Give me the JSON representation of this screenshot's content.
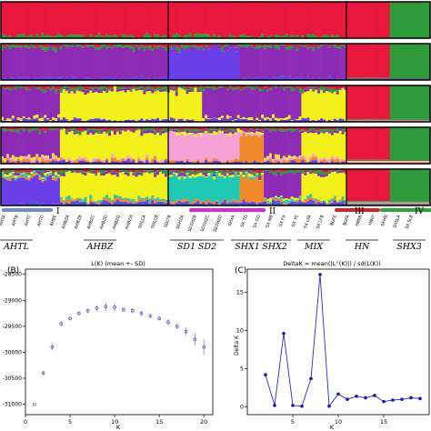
{
  "chart_data": [
    {
      "type": "structure_barplot",
      "rows": [
        {
          "k": 2,
          "colors": [
            "#e8173c",
            "#2e9b3a"
          ]
        },
        {
          "k": 3,
          "colors": [
            "#e8173c",
            "#2e9b3a",
            "#8e2bb5",
            "#6a3fe8"
          ]
        },
        {
          "k": 4,
          "colors": [
            "#e8173c",
            "#2e9b3a",
            "#8e2bb5",
            "#f2f21a",
            "#6a3fe8"
          ]
        },
        {
          "k": 5,
          "colors": [
            "#e8173c",
            "#2e9b3a",
            "#8e2bb5",
            "#f2f21a",
            "#f5a2d6",
            "#f08a2a",
            "#6a3fe8"
          ]
        },
        {
          "k": 6,
          "colors": [
            "#e8173c",
            "#2e9b3a",
            "#8e2bb5",
            "#f2f21a",
            "#1fc9b5",
            "#f08a2a",
            "#6a3fe8",
            "#3b5bd6"
          ]
        }
      ],
      "group_bars": [
        {
          "label": "I",
          "color": "#6e8fc6"
        },
        {
          "label": "II",
          "color": "#d829d8"
        },
        {
          "label": "III",
          "color": "#d8232a"
        },
        {
          "label": "IV",
          "color": "#2ea43a"
        }
      ],
      "sample_labels": [
        "AHTA",
        "AHTB",
        "AHTC",
        "AHTD",
        "AHBE",
        "AHBZA",
        "AHBZB",
        "AHBZC",
        "AHBZD",
        "AHBZG",
        "AHBZH",
        "SDLCA",
        "SDLCB",
        "SDLTB",
        "SDHZA",
        "SD2HZB",
        "SD2HZC",
        "SD2HZD",
        "SHXA",
        "SX TG",
        "SX GQ",
        "SX MB",
        "SX FX",
        "SX YS",
        "SX LFA",
        "SX LFB",
        "BUFE",
        "BUFA",
        "HBRK",
        "HNLY",
        "SXHN",
        "SXSLA",
        "SX SLB"
      ],
      "populations": [
        "AHTL",
        "AHBZ",
        "SD1",
        "SD2",
        "SHX1",
        "SHX2",
        "MIX",
        "HN",
        "SHX3"
      ]
    },
    {
      "type": "line",
      "panel_label": "(B)",
      "title": "L(K) (mean +- SD)",
      "xlabel": "K",
      "ylabel": "",
      "x": [
        1,
        2,
        3,
        4,
        5,
        6,
        7,
        8,
        9,
        10,
        11,
        12,
        13,
        14,
        15,
        16,
        17,
        18,
        19,
        20
      ],
      "y": [
        -31000,
        -30400,
        -29900,
        -29450,
        -29350,
        -29250,
        -29200,
        -29150,
        -29120,
        -29130,
        -29180,
        -29200,
        -29250,
        -29300,
        -29350,
        -29420,
        -29500,
        -29600,
        -29750,
        -29900
      ],
      "yerr": [
        0,
        40,
        60,
        50,
        40,
        40,
        40,
        60,
        80,
        80,
        40,
        50,
        50,
        40,
        40,
        60,
        60,
        80,
        120,
        150
      ],
      "xlim": [
        0,
        21
      ],
      "ylim": [
        -31200,
        -28400
      ],
      "xticks": [
        0,
        5,
        10,
        15,
        20
      ],
      "ytick_labels": [
        "-28500",
        "-29000",
        "-29500",
        "-30000",
        "-30500",
        "-31000"
      ],
      "ytick_values": [
        -28500,
        -29000,
        -29500,
        -30000,
        -30500,
        -31000
      ]
    },
    {
      "type": "line",
      "panel_label": "(C)",
      "title": "DeltaK = mean(|L''(K)|) / sd(L(K))",
      "xlabel": "K",
      "ylabel": "Delta K",
      "x": [
        2,
        3,
        4,
        5,
        6,
        7,
        8,
        9,
        10,
        11,
        12,
        13,
        14,
        15,
        16,
        17,
        18,
        19
      ],
      "y": [
        4.2,
        0.2,
        9.6,
        0.2,
        0.1,
        3.7,
        17.3,
        0.1,
        1.7,
        1.0,
        1.4,
        1.2,
        1.5,
        0.7,
        0.9,
        1.0,
        1.2,
        1.1
      ],
      "xlim": [
        0,
        20
      ],
      "ylim": [
        -1,
        18
      ],
      "xticks": [
        5,
        10,
        15
      ],
      "yticks": [
        0,
        5,
        10,
        15
      ]
    }
  ]
}
